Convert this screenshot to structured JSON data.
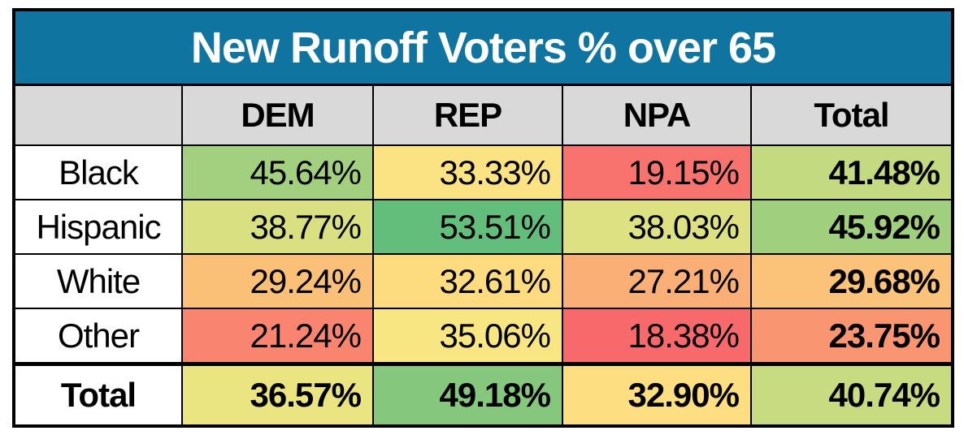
{
  "title": "New Runoff Voters % over 65",
  "colors": {
    "title_bg": "#0F75A0",
    "title_fg": "#FFFFFF",
    "header_bg": "#D9D9D9",
    "border": "#000000",
    "label_bg": "#FFFFFF",
    "scale_min_red": "#F8696B",
    "scale_mid_yellow": "#FFEB84",
    "scale_max_green": "#63BE7B"
  },
  "table": {
    "corner_label": "",
    "columns": [
      "DEM",
      "REP",
      "NPA",
      "Total"
    ],
    "rows": [
      {
        "label": "Black",
        "bold": false,
        "is_total": false,
        "cells": [
          {
            "text": "45.64%",
            "bg": "#A2D07E"
          },
          {
            "text": "33.33%",
            "bg": "#FBE282"
          },
          {
            "text": "19.15%",
            "bg": "#F8736E"
          },
          {
            "text": "41.48%",
            "bg": "#C4DA80"
          }
        ]
      },
      {
        "label": "Hispanic",
        "bold": false,
        "is_total": false,
        "cells": [
          {
            "text": "38.77%",
            "bg": "#D8E081"
          },
          {
            "text": "53.51%",
            "bg": "#63BE7B"
          },
          {
            "text": "38.03%",
            "bg": "#DDE181"
          },
          {
            "text": "45.92%",
            "bg": "#A0CF7E"
          }
        ]
      },
      {
        "label": "White",
        "bold": false,
        "is_total": false,
        "cells": [
          {
            "text": "29.24%",
            "bg": "#FBC078"
          },
          {
            "text": "32.61%",
            "bg": "#FCDC7E"
          },
          {
            "text": "27.21%",
            "bg": "#FAAF77"
          },
          {
            "text": "29.68%",
            "bg": "#FBC379"
          }
        ]
      },
      {
        "label": "Other",
        "bold": false,
        "is_total": false,
        "cells": [
          {
            "text": "21.24%",
            "bg": "#F9846F"
          },
          {
            "text": "35.06%",
            "bg": "#F7E682"
          },
          {
            "text": "18.38%",
            "bg": "#F8696B"
          },
          {
            "text": "23.75%",
            "bg": "#FA9572"
          }
        ]
      },
      {
        "label": "Total",
        "bold": true,
        "is_total": true,
        "cells": [
          {
            "text": "36.57%",
            "bg": "#EAE481"
          },
          {
            "text": "49.18%",
            "bg": "#85C77D"
          },
          {
            "text": "32.90%",
            "bg": "#FDDE80"
          },
          {
            "text": "40.74%",
            "bg": "#C8DB80"
          }
        ]
      }
    ]
  },
  "chart_data": {
    "type": "table",
    "title": "New Runoff Voters % over 65",
    "unit": "%",
    "columns": [
      "DEM",
      "REP",
      "NPA",
      "Total"
    ],
    "row_labels": [
      "Black",
      "Hispanic",
      "White",
      "Other",
      "Total"
    ],
    "rows": [
      {
        "label": "Black",
        "values": [
          45.64,
          33.33,
          19.15,
          41.48
        ]
      },
      {
        "label": "Hispanic",
        "values": [
          38.77,
          53.51,
          38.03,
          45.92
        ]
      },
      {
        "label": "White",
        "values": [
          29.24,
          32.61,
          27.21,
          29.68
        ]
      },
      {
        "label": "Other",
        "values": [
          21.24,
          35.06,
          18.38,
          23.75
        ]
      },
      {
        "label": "Total",
        "values": [
          36.57,
          49.18,
          32.9,
          40.74
        ]
      }
    ],
    "layout_hints": {
      "heatmap": "3-color scale red #F8696B -> yellow #FFEB84 -> green #63BE7B applied across all value cells",
      "totals_bold": true
    }
  }
}
